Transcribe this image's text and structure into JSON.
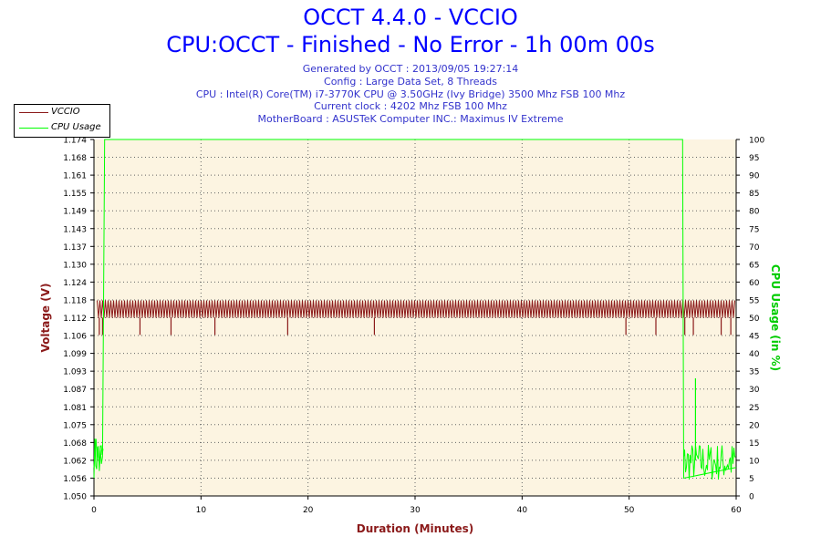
{
  "header": {
    "title": "OCCT 4.4.0 - VCCIO",
    "subtitle": "CPU:OCCT - Finished - No Error - 1h 00m 00s",
    "title_color": "#0000ff",
    "info_color": "#3333cc",
    "info_lines": [
      "Generated by OCCT : 2013/09/05 19:27:14",
      "Config : Large Data Set, 8 Threads",
      "CPU : Intel(R) Core(TM) i7-3770K CPU @ 3.50GHz (Ivy Bridge) 3500 Mhz FSB 100 Mhz",
      "Current clock : 4202 Mhz FSB 100 Mhz",
      "MotherBoard : ASUSTeK Computer INC.: Maximus IV Extreme"
    ]
  },
  "legend": {
    "items": [
      {
        "label": "VCCIO",
        "color": "#8b1a1a"
      },
      {
        "label": "CPU Usage",
        "color": "#00ff00"
      }
    ]
  },
  "chart_data": {
    "type": "line",
    "plot_background": "#fcf4e1",
    "grid": true,
    "xlabel": "Duration (Minutes)",
    "ylabel": "Voltage (V)",
    "y2label": "CPU Usage (in %)",
    "xlim": [
      0,
      60
    ],
    "ylim": [
      1.05,
      1.174
    ],
    "y2lim": [
      0,
      100
    ],
    "x_ticks": [
      "0",
      "10",
      "20",
      "30",
      "40",
      "50",
      "60"
    ],
    "y_ticks": [
      "1.050",
      "1.056",
      "1.062",
      "1.068",
      "1.075",
      "1.081",
      "1.087",
      "1.093",
      "1.099",
      "1.106",
      "1.112",
      "1.118",
      "1.124",
      "1.130",
      "1.137",
      "1.143",
      "1.149",
      "1.155",
      "1.161",
      "1.168",
      "1.174"
    ],
    "y2_ticks": [
      "0",
      "5",
      "10",
      "15",
      "20",
      "25",
      "30",
      "35",
      "40",
      "45",
      "50",
      "55",
      "60",
      "65",
      "70",
      "75",
      "80",
      "85",
      "90",
      "95",
      "100"
    ],
    "series": [
      {
        "name": "VCCIO",
        "axis": "left",
        "color": "#8b1a1a",
        "band_low": 1.112,
        "band_high": 1.118,
        "dips": [
          0.5,
          0.8,
          4.3,
          7.2,
          11.3,
          18.1,
          26.2,
          49.7,
          52.5,
          55.2,
          56.0,
          58.6,
          59.5
        ],
        "dip_value": 1.106
      },
      {
        "name": "CPU Usage",
        "axis": "right",
        "color": "#00ff00",
        "points": [
          [
            0,
            8
          ],
          [
            0.1,
            12
          ],
          [
            0.2,
            16
          ],
          [
            0.3,
            10
          ],
          [
            0.4,
            14
          ],
          [
            0.5,
            7
          ],
          [
            0.6,
            13
          ],
          [
            0.7,
            9
          ],
          [
            0.8,
            11
          ],
          [
            1.0,
            100
          ],
          [
            55.0,
            100
          ],
          [
            55.1,
            5
          ],
          [
            60,
            8
          ]
        ],
        "idle_noise": [
          [
            0.0,
            0.9,
            5,
            17
          ],
          [
            55.1,
            60,
            4,
            15
          ]
        ],
        "spike": [
          56.2,
          33
        ]
      }
    ]
  }
}
